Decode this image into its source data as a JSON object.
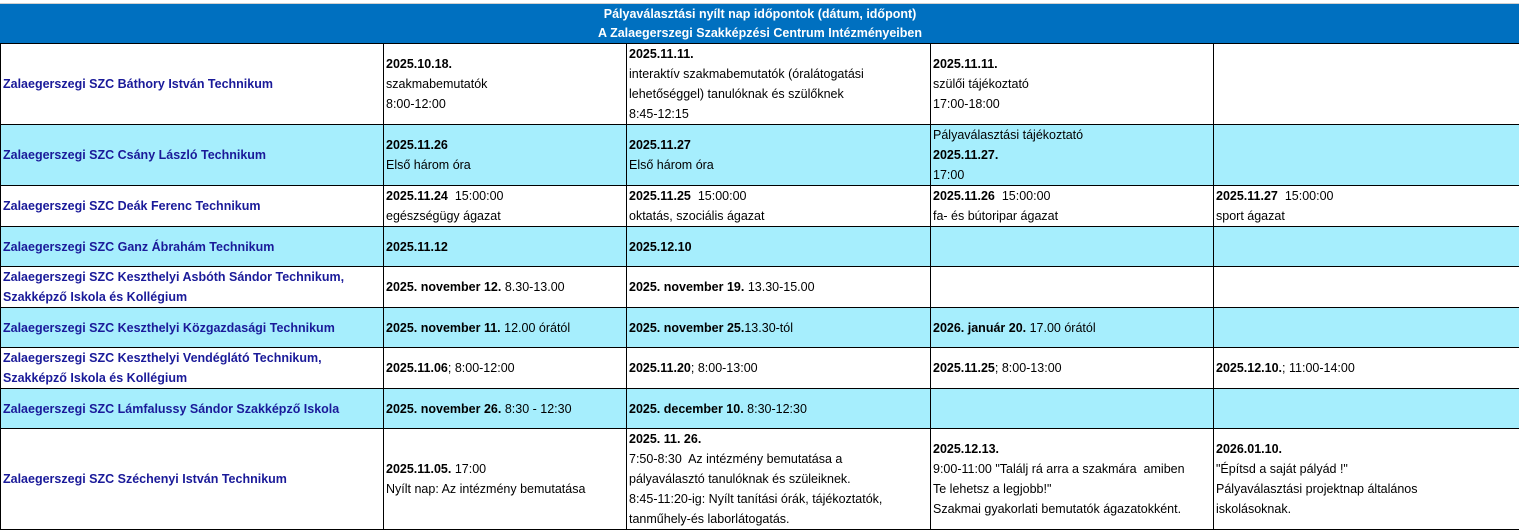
{
  "header": {
    "title": "Pályaválasztási nyílt nap időpontok (dátum, időpont)",
    "subtitle": "A Zalaegerszegi Szakképzési Centrum Intézményeiben"
  },
  "colors": {
    "header_bg": "#0070C0",
    "alt_row_bg": "#A6EEFD",
    "institution_text": "#1a1a99"
  },
  "rows": [
    {
      "name": [
        "Zalaegerszegi SZC  Báthory István Technikum"
      ],
      "alt": false,
      "cells": [
        [
          [
            {
              "b": true,
              "t": "2025.10.18."
            }
          ],
          [
            {
              "b": false,
              "t": "szakmabemutatók"
            }
          ],
          [
            {
              "b": false,
              "t": "8:00-12:00"
            }
          ]
        ],
        [
          [
            {
              "b": true,
              "t": "2025.11.11."
            }
          ],
          [
            {
              "b": false,
              "t": "interaktív szakmabemutatók (óralátogatási"
            }
          ],
          [
            {
              "b": false,
              "t": "lehetőséggel) tanulóknak és szülőknek"
            }
          ],
          [
            {
              "b": false,
              "t": "8:45-12:15"
            }
          ]
        ],
        [
          [
            {
              "b": true,
              "t": "2025.11.11."
            }
          ],
          [
            {
              "b": false,
              "t": "szülői tájékoztató"
            }
          ],
          [
            {
              "b": false,
              "t": "17:00-18:00"
            }
          ]
        ],
        []
      ]
    },
    {
      "name": [
        "Zalaegerszegi SZC Csány László Technikum"
      ],
      "alt": true,
      "cells": [
        [
          [
            {
              "b": true,
              "t": "2025.11.26"
            }
          ],
          [
            {
              "b": false,
              "t": "Első három óra"
            }
          ]
        ],
        [
          [
            {
              "b": true,
              "t": "2025.11.27"
            }
          ],
          [
            {
              "b": false,
              "t": "Első három óra"
            }
          ]
        ],
        [
          [
            {
              "b": false,
              "t": "Pályaválasztási tájékoztató"
            }
          ],
          [
            {
              "b": true,
              "t": "2025.11.27."
            }
          ],
          [
            {
              "b": false,
              "t": "17:00"
            }
          ]
        ],
        []
      ]
    },
    {
      "name": [
        "Zalaegerszegi SZC Deák Ferenc Technikum"
      ],
      "alt": false,
      "cells": [
        [
          [
            {
              "b": true,
              "t": "2025.11.24"
            },
            {
              "b": false,
              "t": "  15:00:00"
            }
          ],
          [
            {
              "b": false,
              "t": "egészségügy ágazat"
            }
          ]
        ],
        [
          [
            {
              "b": true,
              "t": "2025.11.25"
            },
            {
              "b": false,
              "t": "  15:00:00"
            }
          ],
          [
            {
              "b": false,
              "t": "oktatás, szociális ágazat"
            }
          ]
        ],
        [
          [
            {
              "b": true,
              "t": "2025.11.26"
            },
            {
              "b": false,
              "t": "  15:00:00"
            }
          ],
          [
            {
              "b": false,
              "t": "fa- és bútoripar ágazat"
            }
          ]
        ],
        [
          [
            {
              "b": true,
              "t": "2025.11.27"
            },
            {
              "b": false,
              "t": "  15:00:00"
            }
          ],
          [
            {
              "b": false,
              "t": "sport ágazat"
            }
          ]
        ]
      ]
    },
    {
      "name": [
        "Zalaegerszegi SZC Ganz Ábrahám Technikum"
      ],
      "alt": true,
      "cells": [
        [
          [
            {
              "b": true,
              "t": "2025.11.12"
            }
          ]
        ],
        [
          [
            {
              "b": true,
              "t": "2025.12.10"
            }
          ]
        ],
        [],
        []
      ]
    },
    {
      "name": [
        "Zalaegerszegi SZC Keszthelyi Asbóth Sándor Technikum,",
        "Szakképző Iskola és Kollégium"
      ],
      "alt": false,
      "cells": [
        [
          [
            {
              "b": true,
              "t": "2025. november 12."
            },
            {
              "b": false,
              "t": " 8.30-13.00"
            }
          ]
        ],
        [
          [
            {
              "b": true,
              "t": "2025. november 19."
            },
            {
              "b": false,
              "t": " 13.30-15.00"
            }
          ]
        ],
        [],
        []
      ]
    },
    {
      "name": [
        "Zalaegerszegi SZC Keszthelyi Közgazdasági Technikum"
      ],
      "alt": true,
      "cells": [
        [
          [
            {
              "b": true,
              "t": "2025. november 11."
            },
            {
              "b": false,
              "t": " 12.00 órától"
            }
          ]
        ],
        [
          [
            {
              "b": true,
              "t": "2025. november 25."
            },
            {
              "b": false,
              "t": "13.30-tól"
            }
          ]
        ],
        [
          [
            {
              "b": true,
              "t": "2026. január 20."
            },
            {
              "b": false,
              "t": " 17.00 órától"
            }
          ]
        ],
        []
      ]
    },
    {
      "name": [
        "Zalaegerszegi SZC Keszthelyi Vendéglátó Technikum,",
        "Szakképző Iskola és Kollégium"
      ],
      "alt": false,
      "cells": [
        [
          [
            {
              "b": true,
              "t": "2025.11.06"
            },
            {
              "b": false,
              "t": "; 8:00-12:00"
            }
          ]
        ],
        [
          [
            {
              "b": true,
              "t": "2025.11.20"
            },
            {
              "b": false,
              "t": "; 8:00-13:00"
            }
          ]
        ],
        [
          [
            {
              "b": true,
              "t": "2025.11.25"
            },
            {
              "b": false,
              "t": "; 8:00-13:00"
            }
          ]
        ],
        [
          [
            {
              "b": true,
              "t": "2025.12.10."
            },
            {
              "b": false,
              "t": "; 11:00-14:00"
            }
          ]
        ]
      ]
    },
    {
      "name": [
        "Zalaegerszegi SZC Lámfalussy Sándor Szakképző Iskola"
      ],
      "alt": true,
      "cells": [
        [
          [
            {
              "b": true,
              "t": "2025. november 26."
            },
            {
              "b": false,
              "t": " 8:30 - 12:30"
            }
          ]
        ],
        [
          [
            {
              "b": true,
              "t": "2025. december 10."
            },
            {
              "b": false,
              "t": " 8:30-12:30"
            }
          ]
        ],
        [],
        []
      ]
    },
    {
      "name": [
        "Zalaegerszegi SZC Széchenyi István Technikum"
      ],
      "alt": false,
      "cells": [
        [
          [
            {
              "b": true,
              "t": "2025.11.05."
            },
            {
              "b": false,
              "t": " 17:00"
            }
          ],
          [
            {
              "b": false,
              "t": "Nyílt nap: Az intézmény bemutatása"
            }
          ]
        ],
        [
          [
            {
              "b": true,
              "t": "2025. 11. 26."
            }
          ],
          [
            {
              "b": false,
              "t": "7:50-8:30  Az intézmény bemutatása a"
            }
          ],
          [
            {
              "b": false,
              "t": "pályaválasztó tanulóknak és szüleiknek."
            }
          ],
          [
            {
              "b": false,
              "t": "8:45-11:20-ig: Nyílt tanítási órák, tájékoztatók,"
            }
          ],
          [
            {
              "b": false,
              "t": "tanműhely-és laborlátogatás."
            }
          ]
        ],
        [
          [
            {
              "b": true,
              "t": "2025.12.13."
            }
          ],
          [
            {
              "b": false,
              "t": "9:00-11:00 \"Találj rá arra a szakmára  amiben"
            }
          ],
          [
            {
              "b": false,
              "t": "Te lehetsz a legjobb!\""
            }
          ],
          [
            {
              "b": false,
              "t": "Szakmai gyakorlati bemutatók ágazatokként."
            }
          ]
        ],
        [
          [
            {
              "b": true,
              "t": "2026.01.10."
            }
          ],
          [
            {
              "b": false,
              "t": "\"Építsd a saját pályád !\""
            }
          ],
          [
            {
              "b": false,
              "t": "Pályaválasztási projektnap általános"
            }
          ],
          [
            {
              "b": false,
              "t": "iskolásoknak."
            }
          ]
        ]
      ]
    }
  ]
}
